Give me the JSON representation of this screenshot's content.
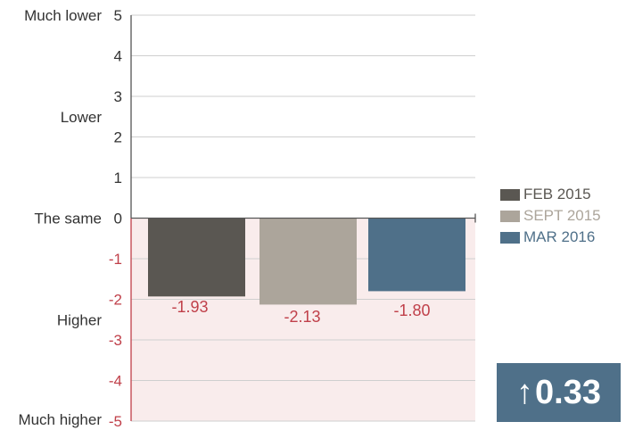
{
  "chart_data": {
    "type": "bar",
    "ylim": [
      -5,
      5
    ],
    "yticks": [
      "5",
      "4",
      "3",
      "2",
      "1",
      "0",
      "-1",
      "-2",
      "-3",
      "-4",
      "-5"
    ],
    "category_labels": [
      {
        "text": "Much lower",
        "value": 5
      },
      {
        "text": "Lower",
        "value": 2.5
      },
      {
        "text": "The same",
        "value": 0
      },
      {
        "text": "Higher",
        "value": -2.5
      },
      {
        "text": "Much higher",
        "value": -5
      }
    ],
    "series": [
      {
        "name": "FEB 2015",
        "value": -1.93,
        "label": "-1.93",
        "color": "#5a5752"
      },
      {
        "name": "SEPT 2015",
        "value": -2.13,
        "label": "-2.13",
        "color": "#aca59b"
      },
      {
        "name": "MAR 2016",
        "value": -1.8,
        "label": "-1.80",
        "color": "#4f7089"
      }
    ],
    "change": {
      "arrow": "↑",
      "value": "0.33",
      "color": "#4f7089"
    },
    "colors": {
      "positive_text": "#333333",
      "negative_text": "#c0404a",
      "negative_area": "#f9ecec",
      "grid": "#cfcfcf",
      "axis": "#555555",
      "negative_axis": "#c0404a"
    }
  }
}
